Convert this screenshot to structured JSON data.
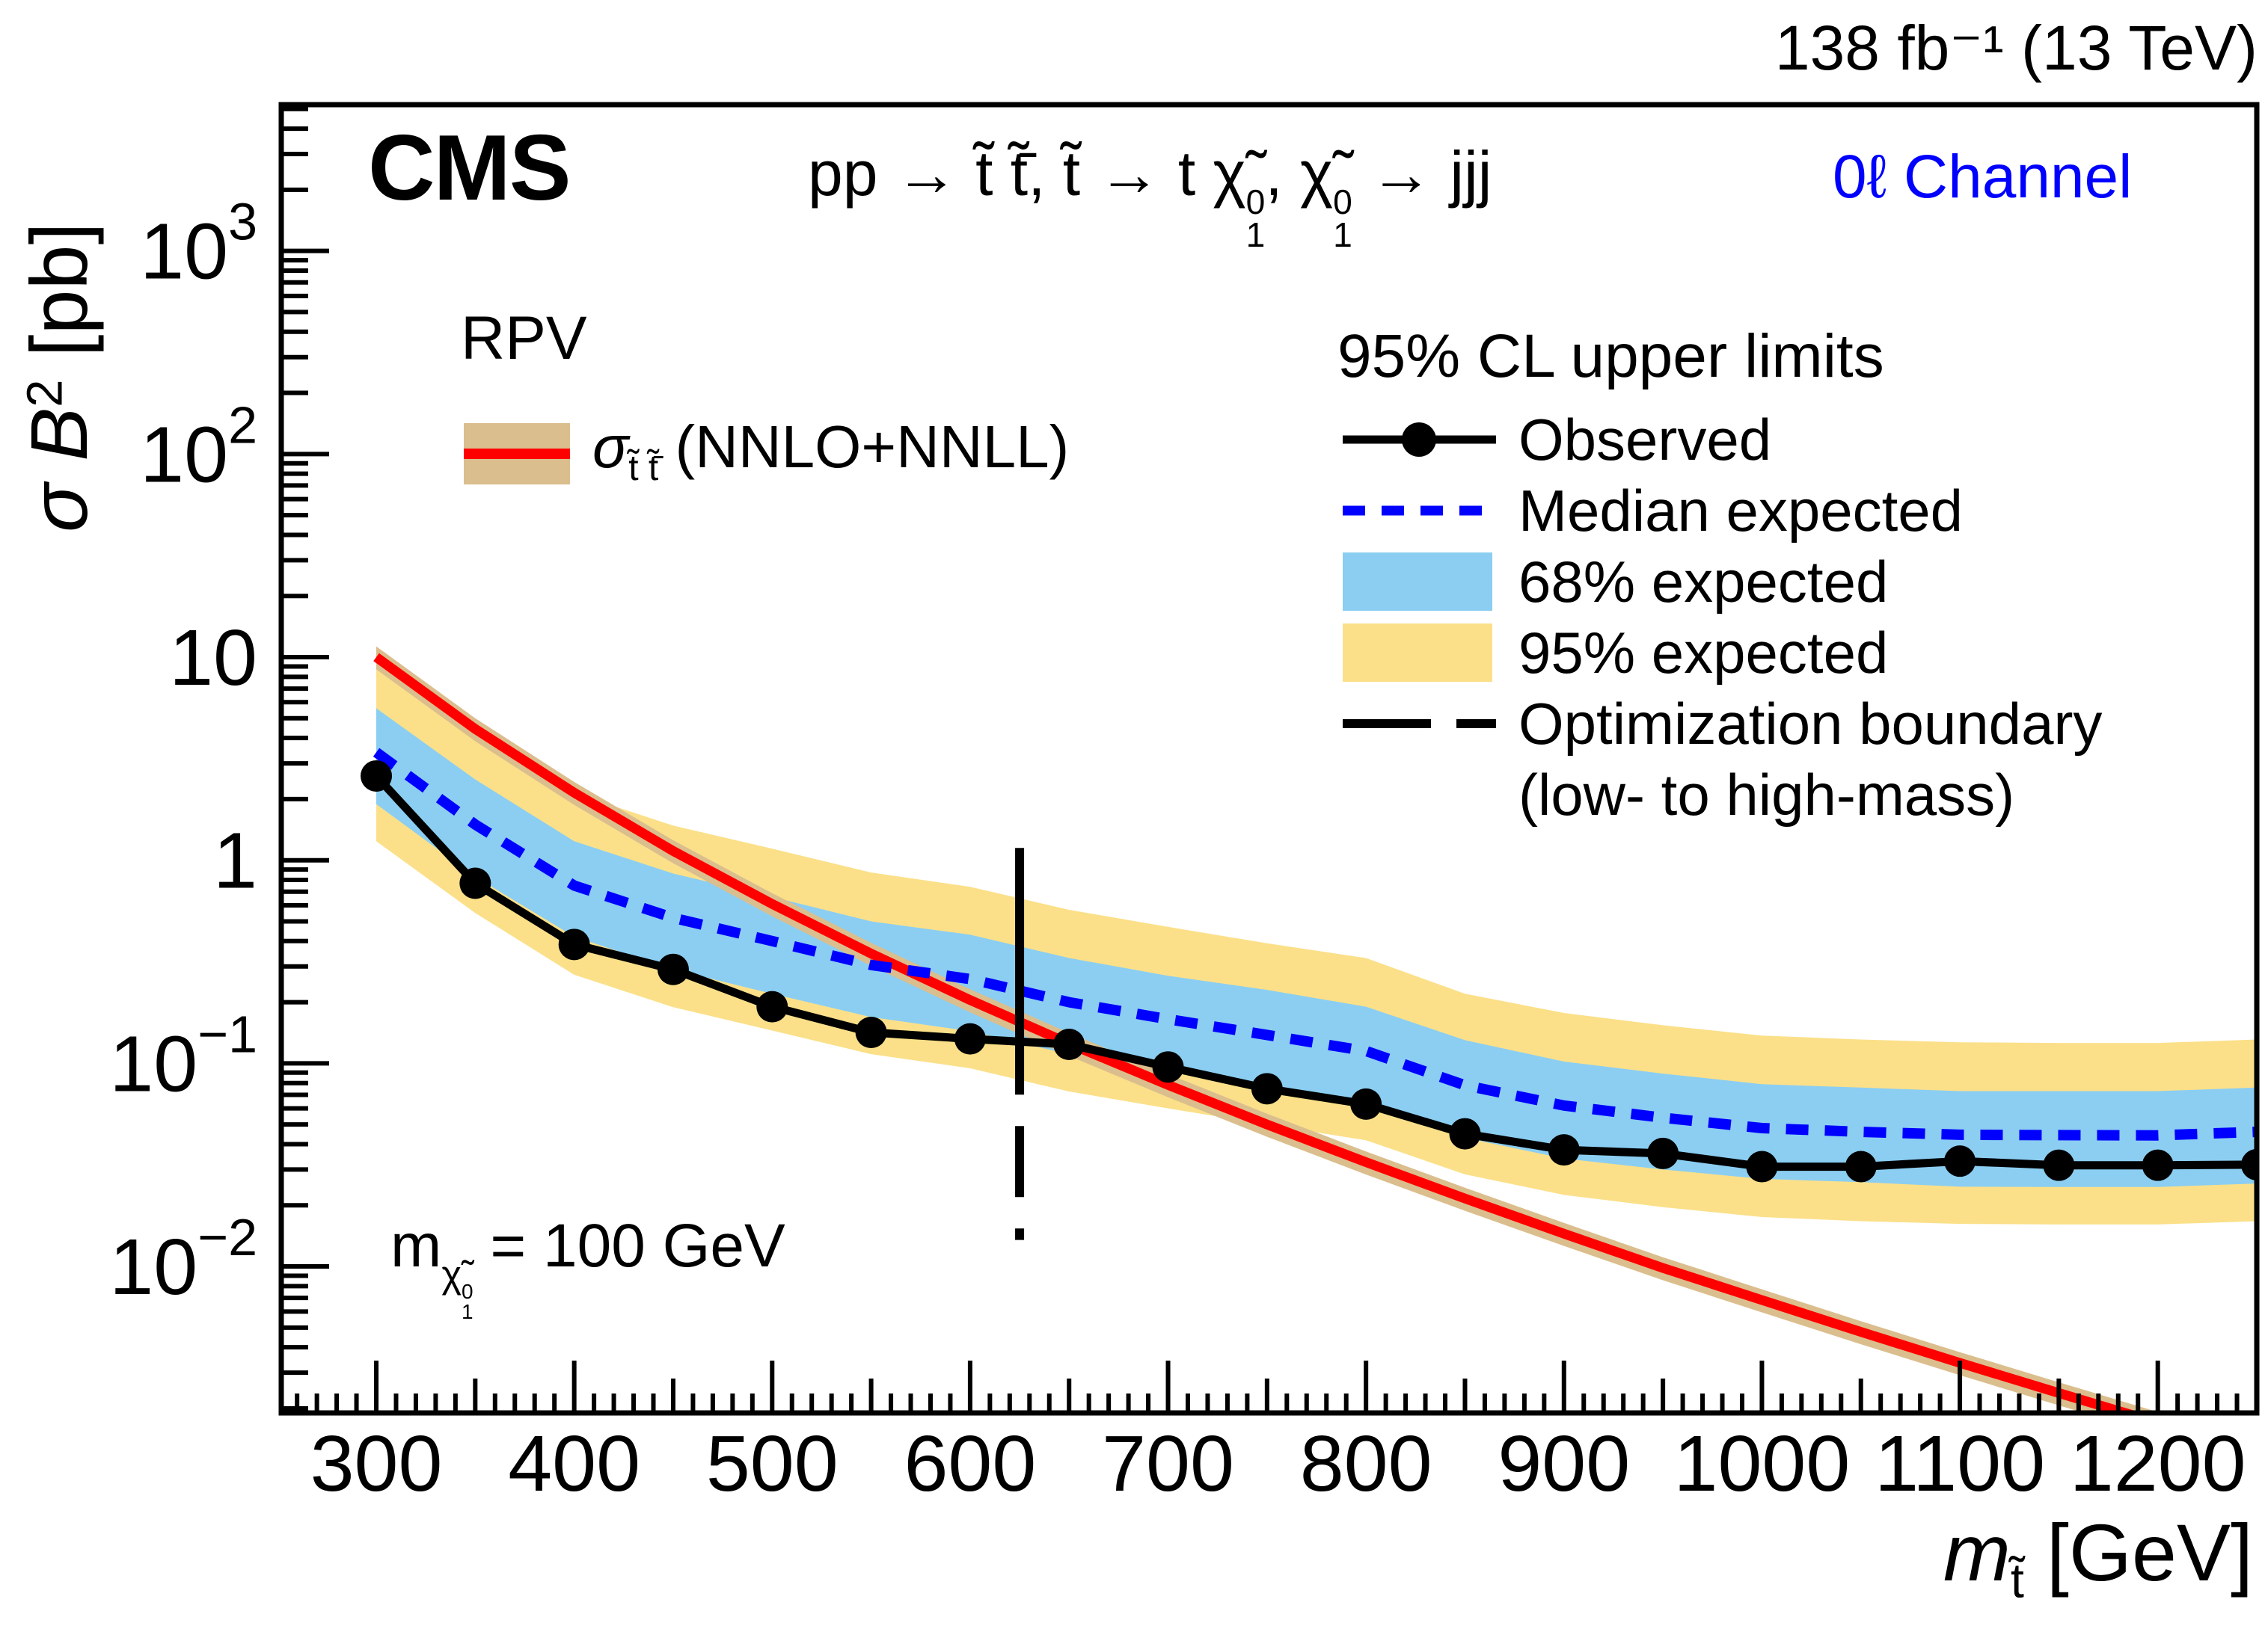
{
  "header": {
    "cms": "CMS",
    "lumi": "138 fb⁻¹ (13 TeV)",
    "channel": "0ℓ Channel"
  },
  "title_parts": {
    "prefix": "pp → t̃ t̃̄, t̃ → t ",
    "chi": "χ̃",
    "sup": "0",
    "sub": "1",
    "mid": ", ",
    "suffix": " → jjj"
  },
  "axes": {
    "x_prefix": "m",
    "x_sub": "t̃",
    "x_unit": " [GeV]",
    "y_sigma": "σ",
    "y_B": "B",
    "y_exp": "2",
    "y_unit": " [pb]"
  },
  "annotation": {
    "m": "m",
    "chi": "χ̃",
    "sup": "0",
    "sub": "1",
    "rest": " = 100 GeV"
  },
  "legend_rpv": {
    "title": "RPV",
    "sigma": "σ",
    "sigma_sub": "t̃ t̃̄",
    "rest": " (NNLO+NNLL)"
  },
  "legend": {
    "title": "95% CL upper limits",
    "items": [
      {
        "label": "Observed",
        "swatch": "line-marker",
        "color": "#000000"
      },
      {
        "label": "Median expected",
        "swatch": "dashed-line",
        "color": "#0000FF"
      },
      {
        "label": "68% expected",
        "swatch": "box",
        "color": "#8BCEF2"
      },
      {
        "label": "95% expected",
        "swatch": "box",
        "color": "#FBE089"
      },
      {
        "label": "Optimization boundary",
        "swatch": "long-dash",
        "color": "#000000"
      },
      {
        "label": "(low- to high-mass)",
        "swatch": "none",
        "color": ""
      }
    ]
  },
  "colors": {
    "observed": "#000000",
    "median_expected": "#0000FF",
    "band_68": "#8BCEF2",
    "band_95": "#FBE089",
    "theory_line": "#FF0000",
    "theory_band": "#DBBE8D",
    "channel_text": "#0000FF",
    "background": "#FFFFFF"
  },
  "chart_data": {
    "type": "line",
    "title": "pp → t̃ t̃̄, t̃ → t χ̃₁⁰, χ̃₁⁰ → jjj",
    "xlabel": "m_t̃ [GeV]",
    "ylabel": "σ B² [pb]",
    "xlim": [
      252,
      1250
    ],
    "ylog": true,
    "ylim": [
      0.0019,
      5250
    ],
    "grid": false,
    "legend_position": "upper right",
    "x_ticks": [
      300,
      400,
      500,
      600,
      700,
      800,
      900,
      1000,
      1100,
      1200
    ],
    "y_ticks": [
      {
        "v": 1000,
        "base": "10",
        "exp": "3"
      },
      {
        "v": 100,
        "base": "10",
        "exp": "2"
      },
      {
        "v": 10,
        "base": "10",
        "exp": ""
      },
      {
        "v": 1,
        "base": "1",
        "exp": ""
      },
      {
        "v": 0.1,
        "base": "10",
        "exp": "−1"
      },
      {
        "v": 0.01,
        "base": "10",
        "exp": "−2"
      }
    ],
    "masses": [
      300,
      350,
      400,
      450,
      500,
      550,
      600,
      650,
      700,
      750,
      800,
      850,
      900,
      950,
      1000,
      1050,
      1100,
      1150,
      1200,
      1250
    ],
    "series": [
      {
        "name": "Observed",
        "color": "#000000",
        "style": "solid-line-markers",
        "values": [
          2.6,
          0.77,
          0.385,
          0.29,
          0.19,
          0.142,
          0.132,
          0.124,
          0.096,
          0.075,
          0.063,
          0.045,
          0.0375,
          0.036,
          0.031,
          0.031,
          0.033,
          0.0315,
          0.0315,
          0.0317
        ]
      },
      {
        "name": "Median expected",
        "color": "#0000FF",
        "style": "dashed-line",
        "values": [
          3.4,
          1.5,
          0.75,
          0.52,
          0.4,
          0.305,
          0.26,
          0.2,
          0.165,
          0.138,
          0.115,
          0.078,
          0.062,
          0.054,
          0.048,
          0.046,
          0.0445,
          0.0443,
          0.0442,
          0.046
        ]
      },
      {
        "name": "68% expected",
        "color": "#8BCEF2",
        "style": "band",
        "upper": [
          5.6,
          2.5,
          1.24,
          0.86,
          0.66,
          0.5,
          0.43,
          0.33,
          0.27,
          0.23,
          0.19,
          0.13,
          0.102,
          0.089,
          0.079,
          0.076,
          0.073,
          0.073,
          0.073,
          0.076
        ],
        "lower": [
          1.89,
          0.83,
          0.42,
          0.29,
          0.22,
          0.169,
          0.144,
          0.111,
          0.092,
          0.077,
          0.064,
          0.043,
          0.034,
          0.03,
          0.027,
          0.026,
          0.0247,
          0.0246,
          0.0246,
          0.0256
        ]
      },
      {
        "name": "95% expected",
        "color": "#FBE089",
        "style": "band",
        "upper": [
          9.7,
          4.3,
          2.14,
          1.48,
          1.14,
          0.87,
          0.74,
          0.57,
          0.47,
          0.39,
          0.33,
          0.22,
          0.177,
          0.154,
          0.137,
          0.131,
          0.127,
          0.126,
          0.126,
          0.131
        ],
        "lower": [
          1.24,
          0.55,
          0.273,
          0.189,
          0.145,
          0.111,
          0.0945,
          0.0727,
          0.06,
          0.05,
          0.0418,
          0.0284,
          0.0225,
          0.0196,
          0.0175,
          0.0167,
          0.0162,
          0.0161,
          0.0161,
          0.0167
        ]
      },
      {
        "name": "RPV σ(t̃ t̃̄) NNLO+NNLL",
        "color": "#FF0000",
        "band_color": "#DBBE8D",
        "band_fraction": 0.13,
        "style": "solid-line-with-band",
        "values": [
          10.0,
          4.43,
          2.15,
          1.11,
          0.609,
          0.347,
          0.205,
          0.125,
          0.0783,
          0.05,
          0.0326,
          0.0216,
          0.0145,
          0.00983,
          0.00683,
          0.00476,
          0.00335,
          0.00238,
          0.0017,
          0.00122
        ]
      }
    ],
    "optimization_boundary": {
      "x": 625,
      "y_top": 1.15,
      "y_bottom": 0.0135
    }
  }
}
